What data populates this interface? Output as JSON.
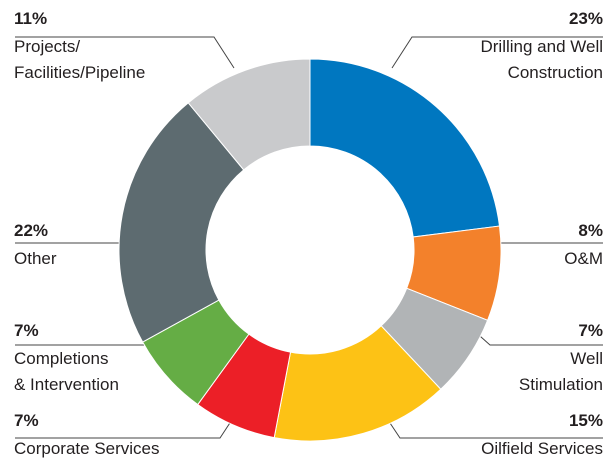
{
  "chart_data": {
    "type": "donut",
    "categories": [
      "Drilling and Well\nConstruction",
      "O&M",
      "Well\nStimulation",
      "Oilfield Services",
      "Corporate Services",
      "Completions\n& Intervention",
      "Other",
      "Projects/\nFacilities/Pipeline"
    ],
    "values": [
      23,
      8,
      7,
      15,
      7,
      7,
      22,
      11
    ],
    "value_labels": [
      "23%",
      "8%",
      "7%",
      "15%",
      "7%",
      "7%",
      "22%",
      "11%"
    ],
    "colors": [
      "#0077c0",
      "#f3812b",
      "#b1b4b6",
      "#fdc215",
      "#ec1f27",
      "#65ad45",
      "#5d6b70",
      "#c9cacc"
    ]
  }
}
